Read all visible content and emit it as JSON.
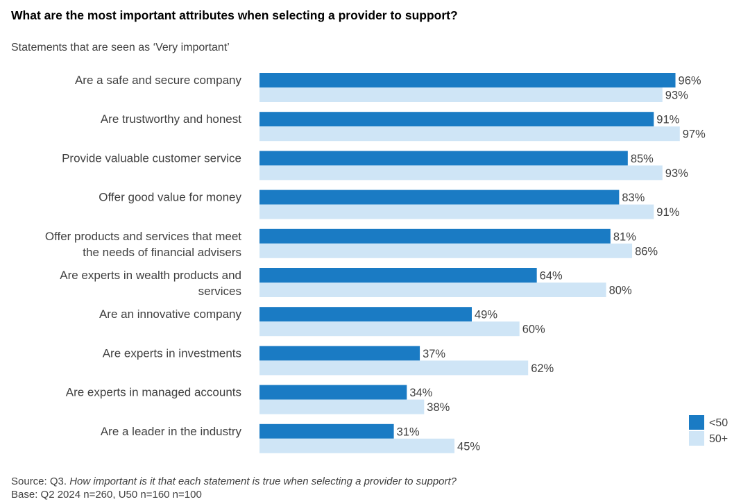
{
  "title": "What are the most important attributes when selecting a provider to support?",
  "subtitle": "Statements that are seen as ‘Very important’",
  "source_prefix": "Source: Q3.",
  "source_question": "How important is it that each statement is true when selecting a provider to support?",
  "base": "Base: Q2 2024 n=260, U50 n=160 n=100",
  "colors": {
    "under50": "#1a7bc4",
    "over50": "#cfe5f6"
  },
  "chart_data": {
    "type": "bar",
    "orientation": "horizontal",
    "categories": [
      [
        "Are a safe and secure company"
      ],
      [
        "Are trustworthy and honest"
      ],
      [
        "Provide valuable customer service"
      ],
      [
        "Offer good value for money"
      ],
      [
        "Offer products and services that meet",
        "the needs of financial advisers"
      ],
      [
        "Are experts in wealth products and",
        "services"
      ],
      [
        "Are an innovative company"
      ],
      [
        "Are experts in investments"
      ],
      [
        "Are experts in managed accounts"
      ],
      [
        "Are a leader in the industry"
      ]
    ],
    "series": [
      {
        "name": "<50",
        "values": [
          96,
          91,
          85,
          83,
          81,
          64,
          49,
          37,
          34,
          31
        ]
      },
      {
        "name": "50+",
        "values": [
          93,
          97,
          93,
          91,
          86,
          80,
          60,
          62,
          38,
          45
        ]
      }
    ],
    "value_suffix": "%",
    "xlim": [
      0,
      100
    ],
    "grid": false,
    "legend_position": "bottom-right"
  }
}
